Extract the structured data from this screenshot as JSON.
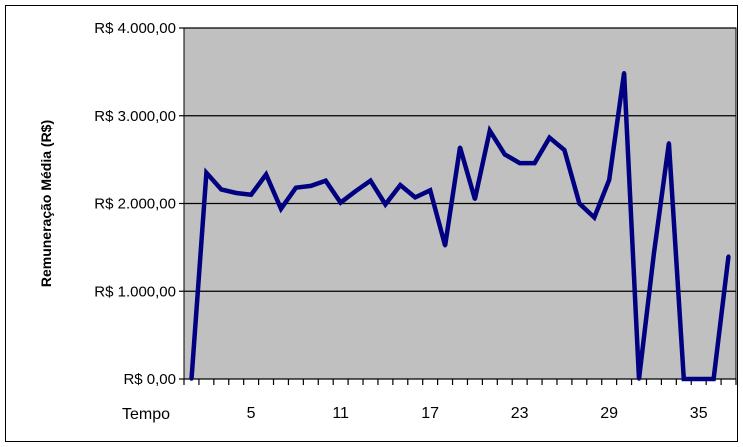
{
  "chart_data": {
    "type": "line",
    "title": "",
    "ylabel": "Remuneração Média (R$)",
    "xlabel": "Tempo",
    "ylim": [
      0,
      4000
    ],
    "yticks": [
      {
        "value": 0,
        "label": "R$ 0,00"
      },
      {
        "value": 1000,
        "label": "R$ 1.000,00"
      },
      {
        "value": 2000,
        "label": "R$ 2.000,00"
      },
      {
        "value": 3000,
        "label": "R$ 3.000,00"
      },
      {
        "value": 4000,
        "label": "R$ 4.000,00"
      }
    ],
    "xticks": [
      {
        "value": 5,
        "label": "5"
      },
      {
        "value": 11,
        "label": "11"
      },
      {
        "value": 17,
        "label": "17"
      },
      {
        "value": 23,
        "label": "23"
      },
      {
        "value": 29,
        "label": "29"
      },
      {
        "value": 35,
        "label": "35"
      }
    ],
    "x_count": 37,
    "grid": true,
    "colors": {
      "plot_bg": "#c0c0c0",
      "line": "#000080",
      "gridline": "#000000"
    },
    "series": [
      {
        "values": [
          0,
          2350,
          2160,
          2120,
          2100,
          2330,
          1940,
          2180,
          2200,
          2260,
          2010,
          2140,
          2260,
          1990,
          2210,
          2070,
          2150,
          1520,
          2640,
          2050,
          2830,
          2560,
          2460,
          2460,
          2750,
          2610,
          2000,
          1840,
          2270,
          3490,
          0,
          1430,
          2690,
          0,
          0,
          0,
          1400
        ]
      }
    ]
  }
}
